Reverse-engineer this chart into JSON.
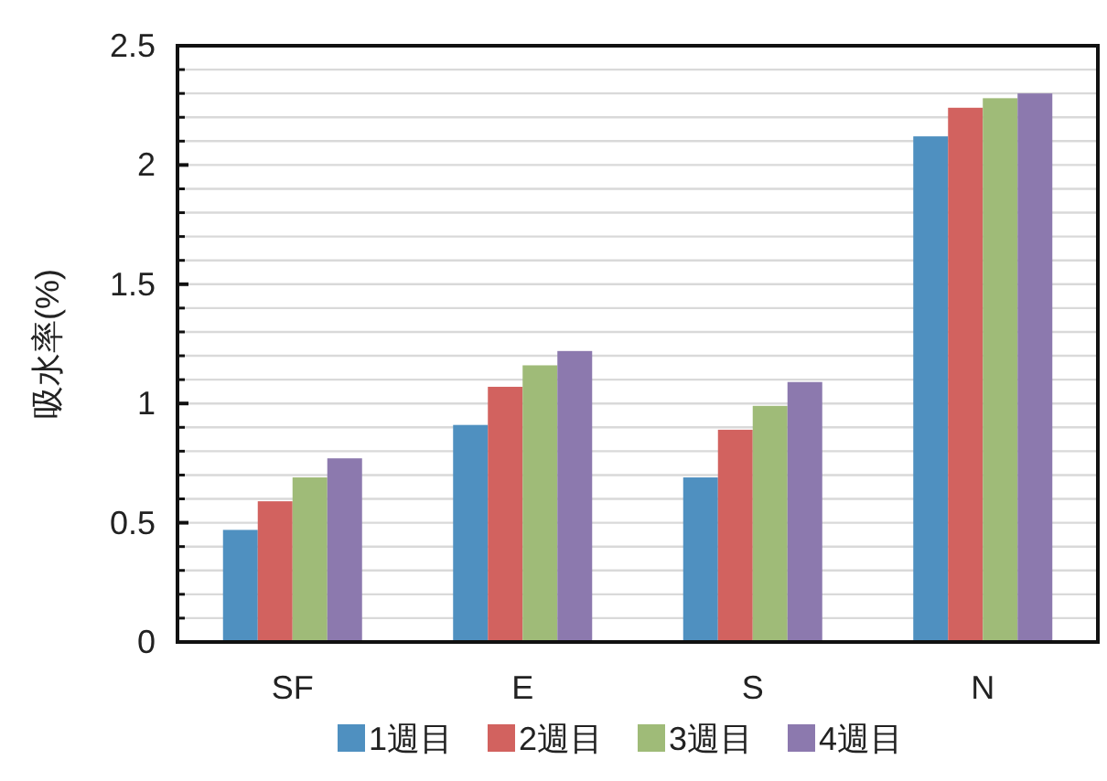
{
  "chart_data": {
    "type": "bar",
    "ylabel": "吸水率(%)",
    "categories": [
      "SF",
      "E",
      "S",
      "N"
    ],
    "series": [
      {
        "name": "1週目",
        "color": "#4f90c0",
        "values": [
          0.47,
          0.91,
          0.69,
          2.12
        ]
      },
      {
        "name": "2週目",
        "color": "#d2625f",
        "values": [
          0.59,
          1.07,
          0.89,
          2.24
        ]
      },
      {
        "name": "3週目",
        "color": "#9fbb78",
        "values": [
          0.69,
          1.16,
          0.99,
          2.28
        ]
      },
      {
        "name": "4週目",
        "color": "#8c79ae",
        "values": [
          0.77,
          1.22,
          1.09,
          2.3
        ]
      }
    ],
    "ylim": [
      0,
      2.5
    ],
    "yticks": [
      0,
      {
        "value": 0.1,
        "label": null
      },
      {
        "value": 0.2,
        "label": null
      },
      {
        "value": 0.3,
        "label": null
      },
      {
        "value": 0.4,
        "label": null
      },
      0.5,
      {
        "value": 0.6,
        "label": null
      },
      {
        "value": 0.7,
        "label": null
      },
      {
        "value": 0.8,
        "label": null
      },
      {
        "value": 0.9,
        "label": null
      },
      1,
      {
        "value": 1.1,
        "label": null
      },
      {
        "value": 1.2,
        "label": null
      },
      {
        "value": 1.3,
        "label": null
      },
      {
        "value": 1.4,
        "label": null
      },
      1.5,
      {
        "value": 1.6,
        "label": null
      },
      {
        "value": 1.7,
        "label": null
      },
      {
        "value": 1.8,
        "label": null
      },
      {
        "value": 1.9,
        "label": null
      },
      2,
      {
        "value": 2.1,
        "label": null
      },
      {
        "value": 2.2,
        "label": null
      },
      {
        "value": 2.3,
        "label": null
      },
      {
        "value": 2.4,
        "label": null
      },
      2.5
    ],
    "grid": "y",
    "legend": "bottom"
  }
}
